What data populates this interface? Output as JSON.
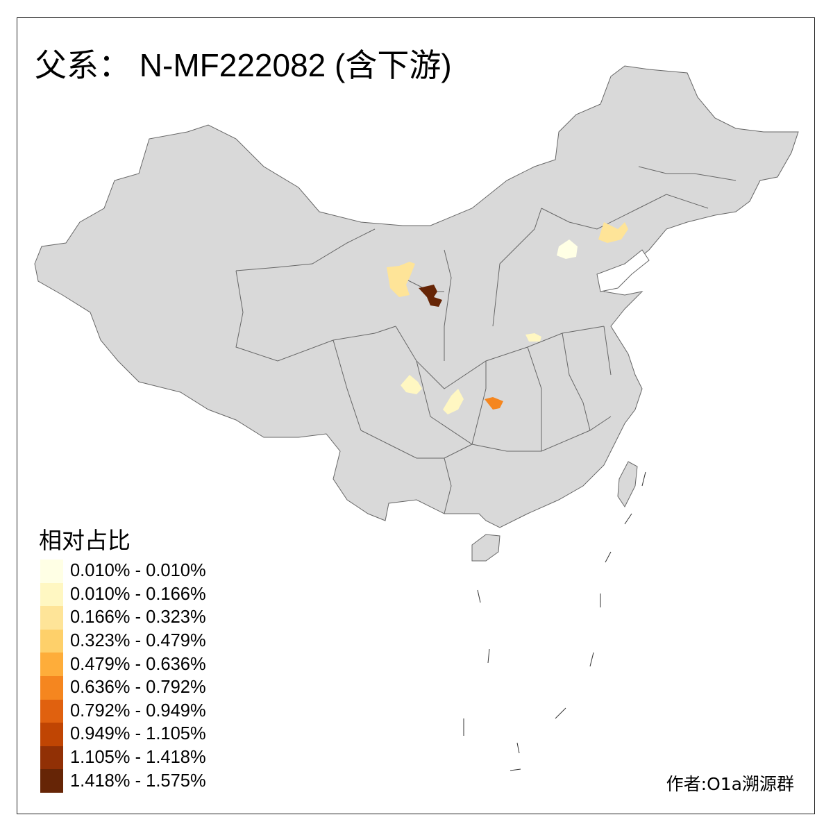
{
  "title": "父系： N-MF222082 (含下游)",
  "legend": {
    "title": "相对占比",
    "items": [
      {
        "label": "0.010% - 0.010%",
        "color": "#FFFFE5"
      },
      {
        "label": "0.010% - 0.166%",
        "color": "#FFF7C2"
      },
      {
        "label": "0.166% - 0.323%",
        "color": "#FEE498"
      },
      {
        "label": "0.323% - 0.479%",
        "color": "#FED06A"
      },
      {
        "label": "0.479% - 0.636%",
        "color": "#FEAD3A"
      },
      {
        "label": "0.636% - 0.792%",
        "color": "#F5861F"
      },
      {
        "label": "0.792% - 0.949%",
        "color": "#E0610F"
      },
      {
        "label": "0.949% - 1.105%",
        "color": "#C04503"
      },
      {
        "label": "1.105% - 1.418%",
        "color": "#913005"
      },
      {
        "label": "1.418% - 1.575%",
        "color": "#662506"
      }
    ]
  },
  "credit": "作者:O1a溯源群",
  "colors": {
    "land": "#D9D9D9",
    "border": "#666666",
    "no_data": "#D9D9D9"
  }
}
